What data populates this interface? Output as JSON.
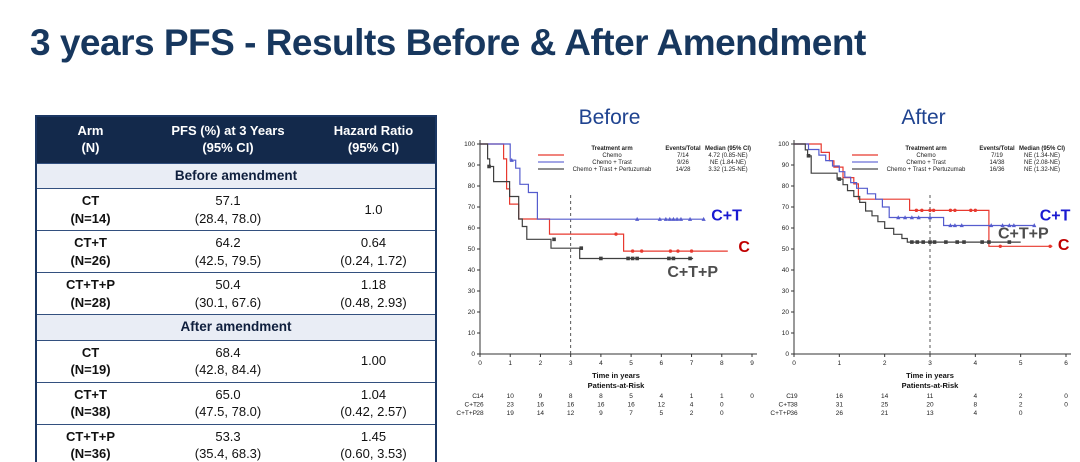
{
  "slide": {
    "title": "3 years PFS - Results Before & After Amendment"
  },
  "theme": {
    "title_color": "#17375e",
    "table_header_bg": "#13294b",
    "table_header_text": "#ffffff",
    "table_section_bg": "#e9edf5",
    "table_border": "#1b3763",
    "row_line": "#33507f",
    "chart_title_color": "#1f4390",
    "axis_color": "#333333"
  },
  "table": {
    "headers": [
      [
        "Arm",
        "(N)"
      ],
      [
        "PFS (%) at 3 Years",
        "(95% CI)"
      ],
      [
        "Hazard Ratio",
        "(95% CI)"
      ]
    ],
    "sections": [
      {
        "label": "Before amendment",
        "rows": [
          {
            "arm": "CT",
            "n": "(N=14)",
            "pfs": "57.1",
            "pfs_ci": "(28.4, 78.0)",
            "hr": "1.0",
            "hr_ci": ""
          },
          {
            "arm": "CT+T",
            "n": "(N=26)",
            "pfs": "64.2",
            "pfs_ci": "(42.5, 79.5)",
            "hr": "0.64",
            "hr_ci": "(0.24, 1.72)"
          },
          {
            "arm": "CT+T+P",
            "n": "(N=28)",
            "pfs": "50.4",
            "pfs_ci": "(30.1, 67.6)",
            "hr": "1.18",
            "hr_ci": "(0.48, 2.93)"
          }
        ]
      },
      {
        "label": "After amendment",
        "rows": [
          {
            "arm": "CT",
            "n": "(N=19)",
            "pfs": "68.4",
            "pfs_ci": "(42.8, 84.4)",
            "hr": "1.00",
            "hr_ci": ""
          },
          {
            "arm": "CT+T",
            "n": "(N=38)",
            "pfs": "65.0",
            "pfs_ci": "(47.5, 78.0)",
            "hr": "1.04",
            "hr_ci": "(0.42, 2.57)"
          },
          {
            "arm": "CT+T+P",
            "n": "(N=36)",
            "pfs": "53.3",
            "pfs_ci": "(35.4, 68.3)",
            "hr": "1.45",
            "hr_ci": "(0.60, 3.53)"
          }
        ]
      }
    ]
  },
  "chart_data": [
    {
      "type": "line",
      "title": "Before",
      "xlabel": "Time in years",
      "risk_label": "Patients-at-Risk",
      "xlim": [
        0,
        9
      ],
      "ylim": [
        0,
        100
      ],
      "xticks": [
        0,
        1,
        2,
        3,
        4,
        5,
        6,
        7,
        8,
        9
      ],
      "yticks": [
        0,
        10,
        20,
        30,
        40,
        50,
        60,
        70,
        80,
        90,
        100
      ],
      "dashed_x": 3,
      "dashed_top": 76,
      "legend": {
        "headers": [
          "Treatment arm",
          "Events/Total",
          "Median (95% CI)"
        ],
        "rows": [
          {
            "name": "Chemo",
            "events": "7/14",
            "median": "4.72 (0.85-NE)",
            "color": "#e8392f"
          },
          {
            "name": "Chemo + Trast",
            "events": "9/26",
            "median": "NE (1.84-NE)",
            "color": "#6a6fd8"
          },
          {
            "name": "Chemo + Trast + Pertuzumab",
            "events": "14/28",
            "median": "3.32 (1.25-NE)",
            "color": "#4a4a4a"
          }
        ]
      },
      "series": [
        {
          "name": "Chemo",
          "color": "#e8392f",
          "marker": "circle",
          "steps": [
            [
              0,
              100
            ],
            [
              0.78,
              92.9
            ],
            [
              0.88,
              78.6
            ],
            [
              0.98,
              71.4
            ],
            [
              1.28,
              64.3
            ],
            [
              2.3,
              57.1
            ],
            [
              4.75,
              49.0
            ],
            [
              8.2,
              49.0
            ]
          ],
          "censors": [
            [
              4.5,
              57.1
            ],
            [
              5.05,
              49.0
            ],
            [
              5.35,
              49.0
            ],
            [
              6.3,
              49.0
            ],
            [
              6.55,
              49.0
            ],
            [
              7.0,
              49.0
            ]
          ]
        },
        {
          "name": "Chemo + Trast",
          "color": "#555cce",
          "marker": "triangle",
          "steps": [
            [
              0,
              100
            ],
            [
              1.0,
              92.3
            ],
            [
              1.18,
              88.5
            ],
            [
              1.32,
              80.8
            ],
            [
              1.6,
              76.9
            ],
            [
              1.9,
              64.2
            ],
            [
              7.4,
              64.2
            ]
          ],
          "censors": [
            [
              1.05,
              92.3
            ],
            [
              5.2,
              64.2
            ],
            [
              5.95,
              64.2
            ],
            [
              6.15,
              64.2
            ],
            [
              6.28,
              64.2
            ],
            [
              6.4,
              64.2
            ],
            [
              6.52,
              64.2
            ],
            [
              6.65,
              64.2
            ],
            [
              6.95,
              64.2
            ],
            [
              7.4,
              64.2
            ]
          ]
        },
        {
          "name": "Chemo + Trast + Pertuzumab",
          "color": "#3f3f3f",
          "marker": "square",
          "steps": [
            [
              0,
              100
            ],
            [
              0.25,
              92.9
            ],
            [
              0.32,
              89.3
            ],
            [
              0.45,
              82.1
            ],
            [
              0.98,
              75.0
            ],
            [
              1.28,
              64.3
            ],
            [
              1.4,
              60.7
            ],
            [
              1.55,
              54.6
            ],
            [
              2.35,
              50.4
            ],
            [
              3.3,
              45.5
            ],
            [
              7.05,
              45.5
            ]
          ],
          "censors": [
            [
              0.3,
              89.3
            ],
            [
              2.45,
              54.6
            ],
            [
              3.35,
              50.4
            ],
            [
              4.0,
              45.5
            ],
            [
              4.9,
              45.5
            ],
            [
              5.05,
              45.5
            ],
            [
              5.2,
              45.5
            ],
            [
              6.25,
              45.5
            ],
            [
              6.4,
              45.5
            ],
            [
              6.95,
              45.5
            ]
          ]
        }
      ],
      "end_labels": [
        {
          "text": "C+T",
          "color": "#1a1ad1",
          "x": 7.65,
          "y": 66
        },
        {
          "text": "C",
          "color": "#c00000",
          "x": 8.55,
          "y": 51
        },
        {
          "text": "C+T+P",
          "color": "#4d4d4d",
          "x": 6.2,
          "y": 39
        }
      ],
      "risk_table": [
        {
          "label": "C",
          "values": [
            14,
            10,
            9,
            8,
            8,
            5,
            4,
            1,
            1,
            0
          ]
        },
        {
          "label": "C+T",
          "values": [
            26,
            23,
            16,
            16,
            16,
            16,
            12,
            4,
            0
          ]
        },
        {
          "label": "C+T+P",
          "values": [
            28,
            19,
            14,
            12,
            9,
            7,
            5,
            2,
            0
          ]
        }
      ]
    },
    {
      "type": "line",
      "title": "After",
      "xlabel": "Time in years",
      "risk_label": "Patients-at-Risk",
      "xlim": [
        0,
        6
      ],
      "ylim": [
        0,
        100
      ],
      "xticks": [
        0,
        1,
        2,
        3,
        4,
        5,
        6
      ],
      "yticks": [
        0,
        10,
        20,
        30,
        40,
        50,
        60,
        70,
        80,
        90,
        100
      ],
      "dashed_x": 3,
      "dashed_top": 76,
      "legend": {
        "headers": [
          "Treatment arm",
          "Events/Total",
          "Median (95% CI)"
        ],
        "rows": [
          {
            "name": "Chemo",
            "events": "7/19",
            "median": "NE (1.34-NE)",
            "color": "#e8392f"
          },
          {
            "name": "Chemo + Trast",
            "events": "14/38",
            "median": "NE (2.08-NE)",
            "color": "#6a6fd8"
          },
          {
            "name": "Chemo + Trast + Pertuzumab",
            "events": "16/36",
            "median": "NE (1.32-NE)",
            "color": "#4a4a4a"
          }
        ]
      },
      "series": [
        {
          "name": "Chemo",
          "color": "#e8392f",
          "marker": "circle",
          "steps": [
            [
              0,
              100
            ],
            [
              0.6,
              96.0
            ],
            [
              0.78,
              92.0
            ],
            [
              0.88,
              89.0
            ],
            [
              1.08,
              84.0
            ],
            [
              1.32,
              81.0
            ],
            [
              1.42,
              73.7
            ],
            [
              2.55,
              68.4
            ],
            [
              4.3,
              51.3
            ],
            [
              5.7,
              51.3
            ]
          ],
          "censors": [
            [
              2.7,
              68.4
            ],
            [
              2.82,
              68.4
            ],
            [
              3.0,
              68.4
            ],
            [
              3.08,
              68.4
            ],
            [
              3.45,
              68.4
            ],
            [
              3.55,
              68.4
            ],
            [
              3.9,
              68.4
            ],
            [
              4.0,
              68.4
            ],
            [
              4.55,
              51.3
            ],
            [
              5.65,
              51.3
            ]
          ]
        },
        {
          "name": "Chemo + Trast",
          "color": "#555cce",
          "marker": "triangle",
          "steps": [
            [
              0,
              100
            ],
            [
              0.32,
              97.4
            ],
            [
              0.55,
              94.7
            ],
            [
              0.7,
              92.1
            ],
            [
              0.85,
              89.5
            ],
            [
              1.0,
              86.8
            ],
            [
              1.12,
              84.2
            ],
            [
              1.25,
              81.6
            ],
            [
              1.38,
              78.9
            ],
            [
              1.62,
              76.3
            ],
            [
              1.8,
              73.7
            ],
            [
              1.95,
              70.0
            ],
            [
              2.1,
              65.0
            ],
            [
              3.3,
              61.2
            ],
            [
              5.3,
              61.2
            ]
          ],
          "censors": [
            [
              2.3,
              65.0
            ],
            [
              2.45,
              65.0
            ],
            [
              2.6,
              65.0
            ],
            [
              2.75,
              65.0
            ],
            [
              3.0,
              65.0
            ],
            [
              3.45,
              61.2
            ],
            [
              3.55,
              61.2
            ],
            [
              3.7,
              61.2
            ],
            [
              4.35,
              61.2
            ],
            [
              4.6,
              61.2
            ],
            [
              4.75,
              61.2
            ],
            [
              4.85,
              61.2
            ],
            [
              5.3,
              61.2
            ]
          ]
        },
        {
          "name": "Chemo + Trast + Pertuzumab",
          "color": "#3f3f3f",
          "marker": "square",
          "steps": [
            [
              0,
              100
            ],
            [
              0.25,
              97.2
            ],
            [
              0.3,
              94.4
            ],
            [
              0.38,
              86.1
            ],
            [
              0.95,
              83.3
            ],
            [
              1.08,
              80.6
            ],
            [
              1.18,
              77.8
            ],
            [
              1.32,
              75.0
            ],
            [
              1.45,
              72.2
            ],
            [
              1.58,
              68.1
            ],
            [
              1.72,
              65.8
            ],
            [
              1.85,
              63.0
            ],
            [
              2.0,
              59.8
            ],
            [
              2.2,
              57.0
            ],
            [
              2.38,
              55.0
            ],
            [
              2.5,
              53.3
            ],
            [
              5.0,
              53.3
            ]
          ],
          "censors": [
            [
              0.32,
              94.4
            ],
            [
              1.0,
              83.3
            ],
            [
              2.6,
              53.3
            ],
            [
              2.72,
              53.3
            ],
            [
              2.85,
              53.3
            ],
            [
              3.0,
              53.3
            ],
            [
              3.1,
              53.3
            ],
            [
              3.35,
              53.3
            ],
            [
              3.6,
              53.3
            ],
            [
              3.75,
              53.3
            ],
            [
              4.15,
              53.3
            ],
            [
              4.3,
              53.3
            ],
            [
              4.75,
              53.3
            ]
          ]
        }
      ],
      "end_labels": [
        {
          "text": "C+T",
          "color": "#1a1ad1",
          "x": 5.42,
          "y": 66
        },
        {
          "text": "C+T+P",
          "color": "#4d4d4d",
          "x": 4.5,
          "y": 57.5
        },
        {
          "text": "C",
          "color": "#c00000",
          "x": 5.82,
          "y": 52
        }
      ],
      "risk_table": [
        {
          "label": "C",
          "values": [
            19,
            16,
            14,
            11,
            4,
            2,
            0
          ]
        },
        {
          "label": "C+T",
          "values": [
            38,
            31,
            25,
            20,
            8,
            2,
            0
          ]
        },
        {
          "label": "C+T+P",
          "values": [
            36,
            26,
            21,
            13,
            4,
            0
          ]
        }
      ]
    }
  ]
}
